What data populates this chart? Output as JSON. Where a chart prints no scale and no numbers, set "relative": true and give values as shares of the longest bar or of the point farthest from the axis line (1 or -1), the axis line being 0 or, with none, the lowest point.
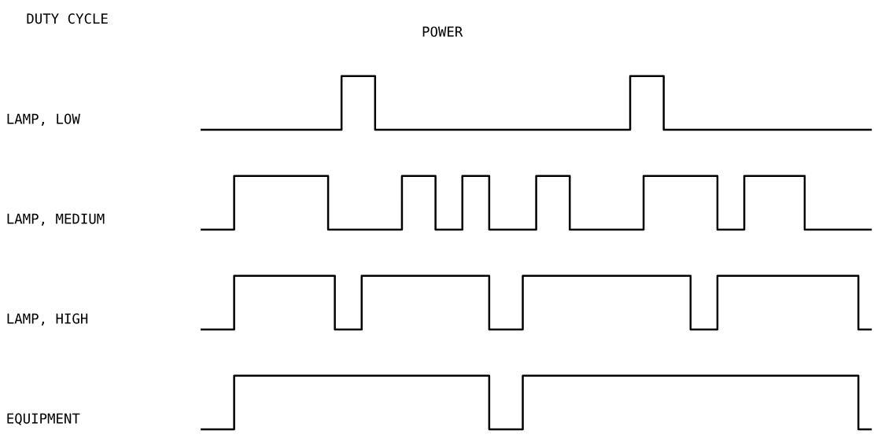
{
  "chart_data": [
    {
      "type": "step",
      "title": "POWER",
      "annotations": [
        "DUTY CYCLE"
      ],
      "relative": true,
      "categories": [
        null,
        null,
        null,
        null,
        null,
        null,
        null,
        null,
        null,
        null,
        null,
        null,
        null,
        null,
        null,
        null,
        null,
        null,
        null,
        null,
        null,
        null,
        null,
        null,
        null,
        null,
        null,
        null,
        null,
        null,
        null,
        null,
        null,
        null,
        null,
        null,
        null,
        null,
        null,
        null,
        null,
        null,
        null,
        null,
        null,
        null,
        null,
        null,
        null,
        null,
        null,
        null,
        null,
        null,
        null,
        null,
        null,
        null,
        null,
        null,
        null,
        null,
        null,
        null,
        null,
        null,
        null,
        null,
        null,
        null,
        null,
        null,
        null,
        null,
        null,
        null,
        null,
        null,
        null,
        null,
        null,
        null,
        null,
        null,
        null,
        null,
        null,
        null,
        null,
        null,
        null,
        null,
        null,
        null,
        null,
        null,
        null,
        null,
        null,
        null,
        null
      ],
      "series": [
        {
          "name": "LAMP, LOW",
          "color": "#000000",
          "values": [
            0,
            0,
            0,
            0,
            0,
            0,
            0,
            0,
            0,
            0,
            0,
            0,
            0,
            0,
            0,
            0,
            0,
            0,
            0,
            0,
            0,
            1,
            1,
            1,
            1,
            1,
            0,
            0,
            0,
            0,
            0,
            0,
            0,
            0,
            0,
            0,
            0,
            0,
            0,
            0,
            0,
            0,
            0,
            0,
            0,
            0,
            0,
            0,
            0,
            0,
            0,
            0,
            0,
            0,
            0,
            0,
            0,
            0,
            0,
            0,
            0,
            0,
            0,
            0,
            1,
            1,
            1,
            1,
            1,
            0,
            0,
            0,
            0,
            0,
            0,
            0,
            0,
            0,
            0,
            0,
            0,
            0,
            0,
            0,
            0,
            0,
            0,
            0,
            0,
            0,
            0,
            0,
            0,
            0,
            0,
            0,
            0,
            0,
            0,
            0,
            0
          ]
        }
      ]
    },
    {
      "type": "step",
      "relative": true,
      "categories": [
        null,
        null,
        null,
        null,
        null,
        null,
        null,
        null,
        null,
        null,
        null,
        null,
        null,
        null,
        null,
        null,
        null,
        null,
        null,
        null,
        null,
        null,
        null,
        null,
        null,
        null,
        null,
        null,
        null,
        null,
        null,
        null,
        null,
        null,
        null,
        null,
        null,
        null,
        null,
        null,
        null,
        null,
        null,
        null,
        null,
        null,
        null,
        null,
        null,
        null,
        null,
        null,
        null,
        null,
        null,
        null,
        null,
        null,
        null,
        null,
        null,
        null,
        null,
        null,
        null,
        null,
        null,
        null,
        null,
        null,
        null,
        null,
        null,
        null,
        null,
        null,
        null,
        null,
        null,
        null,
        null,
        null,
        null,
        null,
        null,
        null,
        null,
        null,
        null,
        null,
        null,
        null,
        null,
        null,
        null,
        null,
        null,
        null,
        null,
        null,
        null
      ],
      "series": [
        {
          "name": "LAMP, MEDIUM",
          "color": "#000000",
          "values": [
            0,
            0,
            0,
            0,
            0,
            1,
            1,
            1,
            1,
            1,
            1,
            1,
            1,
            1,
            1,
            1,
            1,
            1,
            1,
            0,
            0,
            0,
            0,
            0,
            0,
            0,
            0,
            0,
            0,
            0,
            1,
            1,
            1,
            1,
            1,
            0,
            0,
            0,
            0,
            1,
            1,
            1,
            1,
            0,
            0,
            0,
            0,
            0,
            0,
            0,
            1,
            1,
            1,
            1,
            1,
            0,
            0,
            0,
            0,
            0,
            0,
            0,
            0,
            0,
            0,
            0,
            1,
            1,
            1,
            1,
            1,
            1,
            1,
            1,
            1,
            1,
            1,
            0,
            0,
            0,
            0,
            1,
            1,
            1,
            1,
            1,
            1,
            1,
            1,
            1,
            0,
            0,
            0,
            0,
            0,
            0,
            0,
            0,
            0,
            0,
            0
          ]
        }
      ]
    },
    {
      "type": "step",
      "relative": true,
      "categories": [
        null,
        null,
        null,
        null,
        null,
        null,
        null,
        null,
        null,
        null,
        null,
        null,
        null,
        null,
        null,
        null,
        null,
        null,
        null,
        null,
        null,
        null,
        null,
        null,
        null,
        null,
        null,
        null,
        null,
        null,
        null,
        null,
        null,
        null,
        null,
        null,
        null,
        null,
        null,
        null,
        null,
        null,
        null,
        null,
        null,
        null,
        null,
        null,
        null,
        null,
        null,
        null,
        null,
        null,
        null,
        null,
        null,
        null,
        null,
        null,
        null,
        null,
        null,
        null,
        null,
        null,
        null,
        null,
        null,
        null,
        null,
        null,
        null,
        null,
        null,
        null,
        null,
        null,
        null,
        null,
        null,
        null,
        null,
        null,
        null,
        null,
        null,
        null,
        null,
        null,
        null,
        null,
        null,
        null,
        null,
        null,
        null,
        null,
        null,
        null,
        null
      ],
      "series": [
        {
          "name": "LAMP, HIGH",
          "color": "#000000",
          "values": [
            0,
            0,
            0,
            0,
            0,
            1,
            1,
            1,
            1,
            1,
            1,
            1,
            1,
            1,
            1,
            1,
            1,
            1,
            1,
            1,
            0,
            0,
            0,
            0,
            1,
            1,
            1,
            1,
            1,
            1,
            1,
            1,
            1,
            1,
            1,
            1,
            1,
            1,
            1,
            1,
            1,
            1,
            1,
            0,
            0,
            0,
            0,
            0,
            1,
            1,
            1,
            1,
            1,
            1,
            1,
            1,
            1,
            1,
            1,
            1,
            1,
            1,
            1,
            1,
            1,
            1,
            1,
            1,
            1,
            1,
            1,
            1,
            1,
            0,
            0,
            0,
            0,
            1,
            1,
            1,
            1,
            1,
            1,
            1,
            1,
            1,
            1,
            1,
            1,
            1,
            1,
            1,
            1,
            1,
            1,
            1,
            1,
            1,
            0,
            0,
            0
          ]
        }
      ]
    },
    {
      "type": "step",
      "relative": true,
      "categories": [
        null,
        null,
        null,
        null,
        null,
        null,
        null,
        null,
        null,
        null,
        null,
        null,
        null,
        null,
        null,
        null,
        null,
        null,
        null,
        null,
        null,
        null,
        null,
        null,
        null,
        null,
        null,
        null,
        null,
        null,
        null,
        null,
        null,
        null,
        null,
        null,
        null,
        null,
        null,
        null,
        null,
        null,
        null,
        null,
        null,
        null,
        null,
        null,
        null,
        null,
        null,
        null,
        null,
        null,
        null,
        null,
        null,
        null,
        null,
        null,
        null,
        null,
        null,
        null,
        null,
        null,
        null,
        null,
        null,
        null,
        null,
        null,
        null,
        null,
        null,
        null,
        null,
        null,
        null,
        null,
        null,
        null,
        null,
        null,
        null,
        null,
        null,
        null,
        null,
        null,
        null,
        null,
        null,
        null,
        null,
        null,
        null,
        null,
        null,
        null,
        null
      ],
      "series": [
        {
          "name": "EQUIPMENT",
          "color": "#000000",
          "values": [
            0,
            0,
            0,
            0,
            0,
            1,
            1,
            1,
            1,
            1,
            1,
            1,
            1,
            1,
            1,
            1,
            1,
            1,
            1,
            1,
            1,
            1,
            1,
            1,
            1,
            1,
            1,
            1,
            1,
            1,
            1,
            1,
            1,
            1,
            1,
            1,
            1,
            1,
            1,
            1,
            1,
            1,
            1,
            0,
            0,
            0,
            0,
            0,
            1,
            1,
            1,
            1,
            1,
            1,
            1,
            1,
            1,
            1,
            1,
            1,
            1,
            1,
            1,
            1,
            1,
            1,
            1,
            1,
            1,
            1,
            1,
            1,
            1,
            1,
            1,
            1,
            1,
            1,
            1,
            1,
            1,
            1,
            1,
            1,
            1,
            1,
            1,
            1,
            1,
            1,
            1,
            1,
            1,
            1,
            1,
            1,
            1,
            1,
            0,
            0,
            0
          ]
        }
      ]
    }
  ]
}
